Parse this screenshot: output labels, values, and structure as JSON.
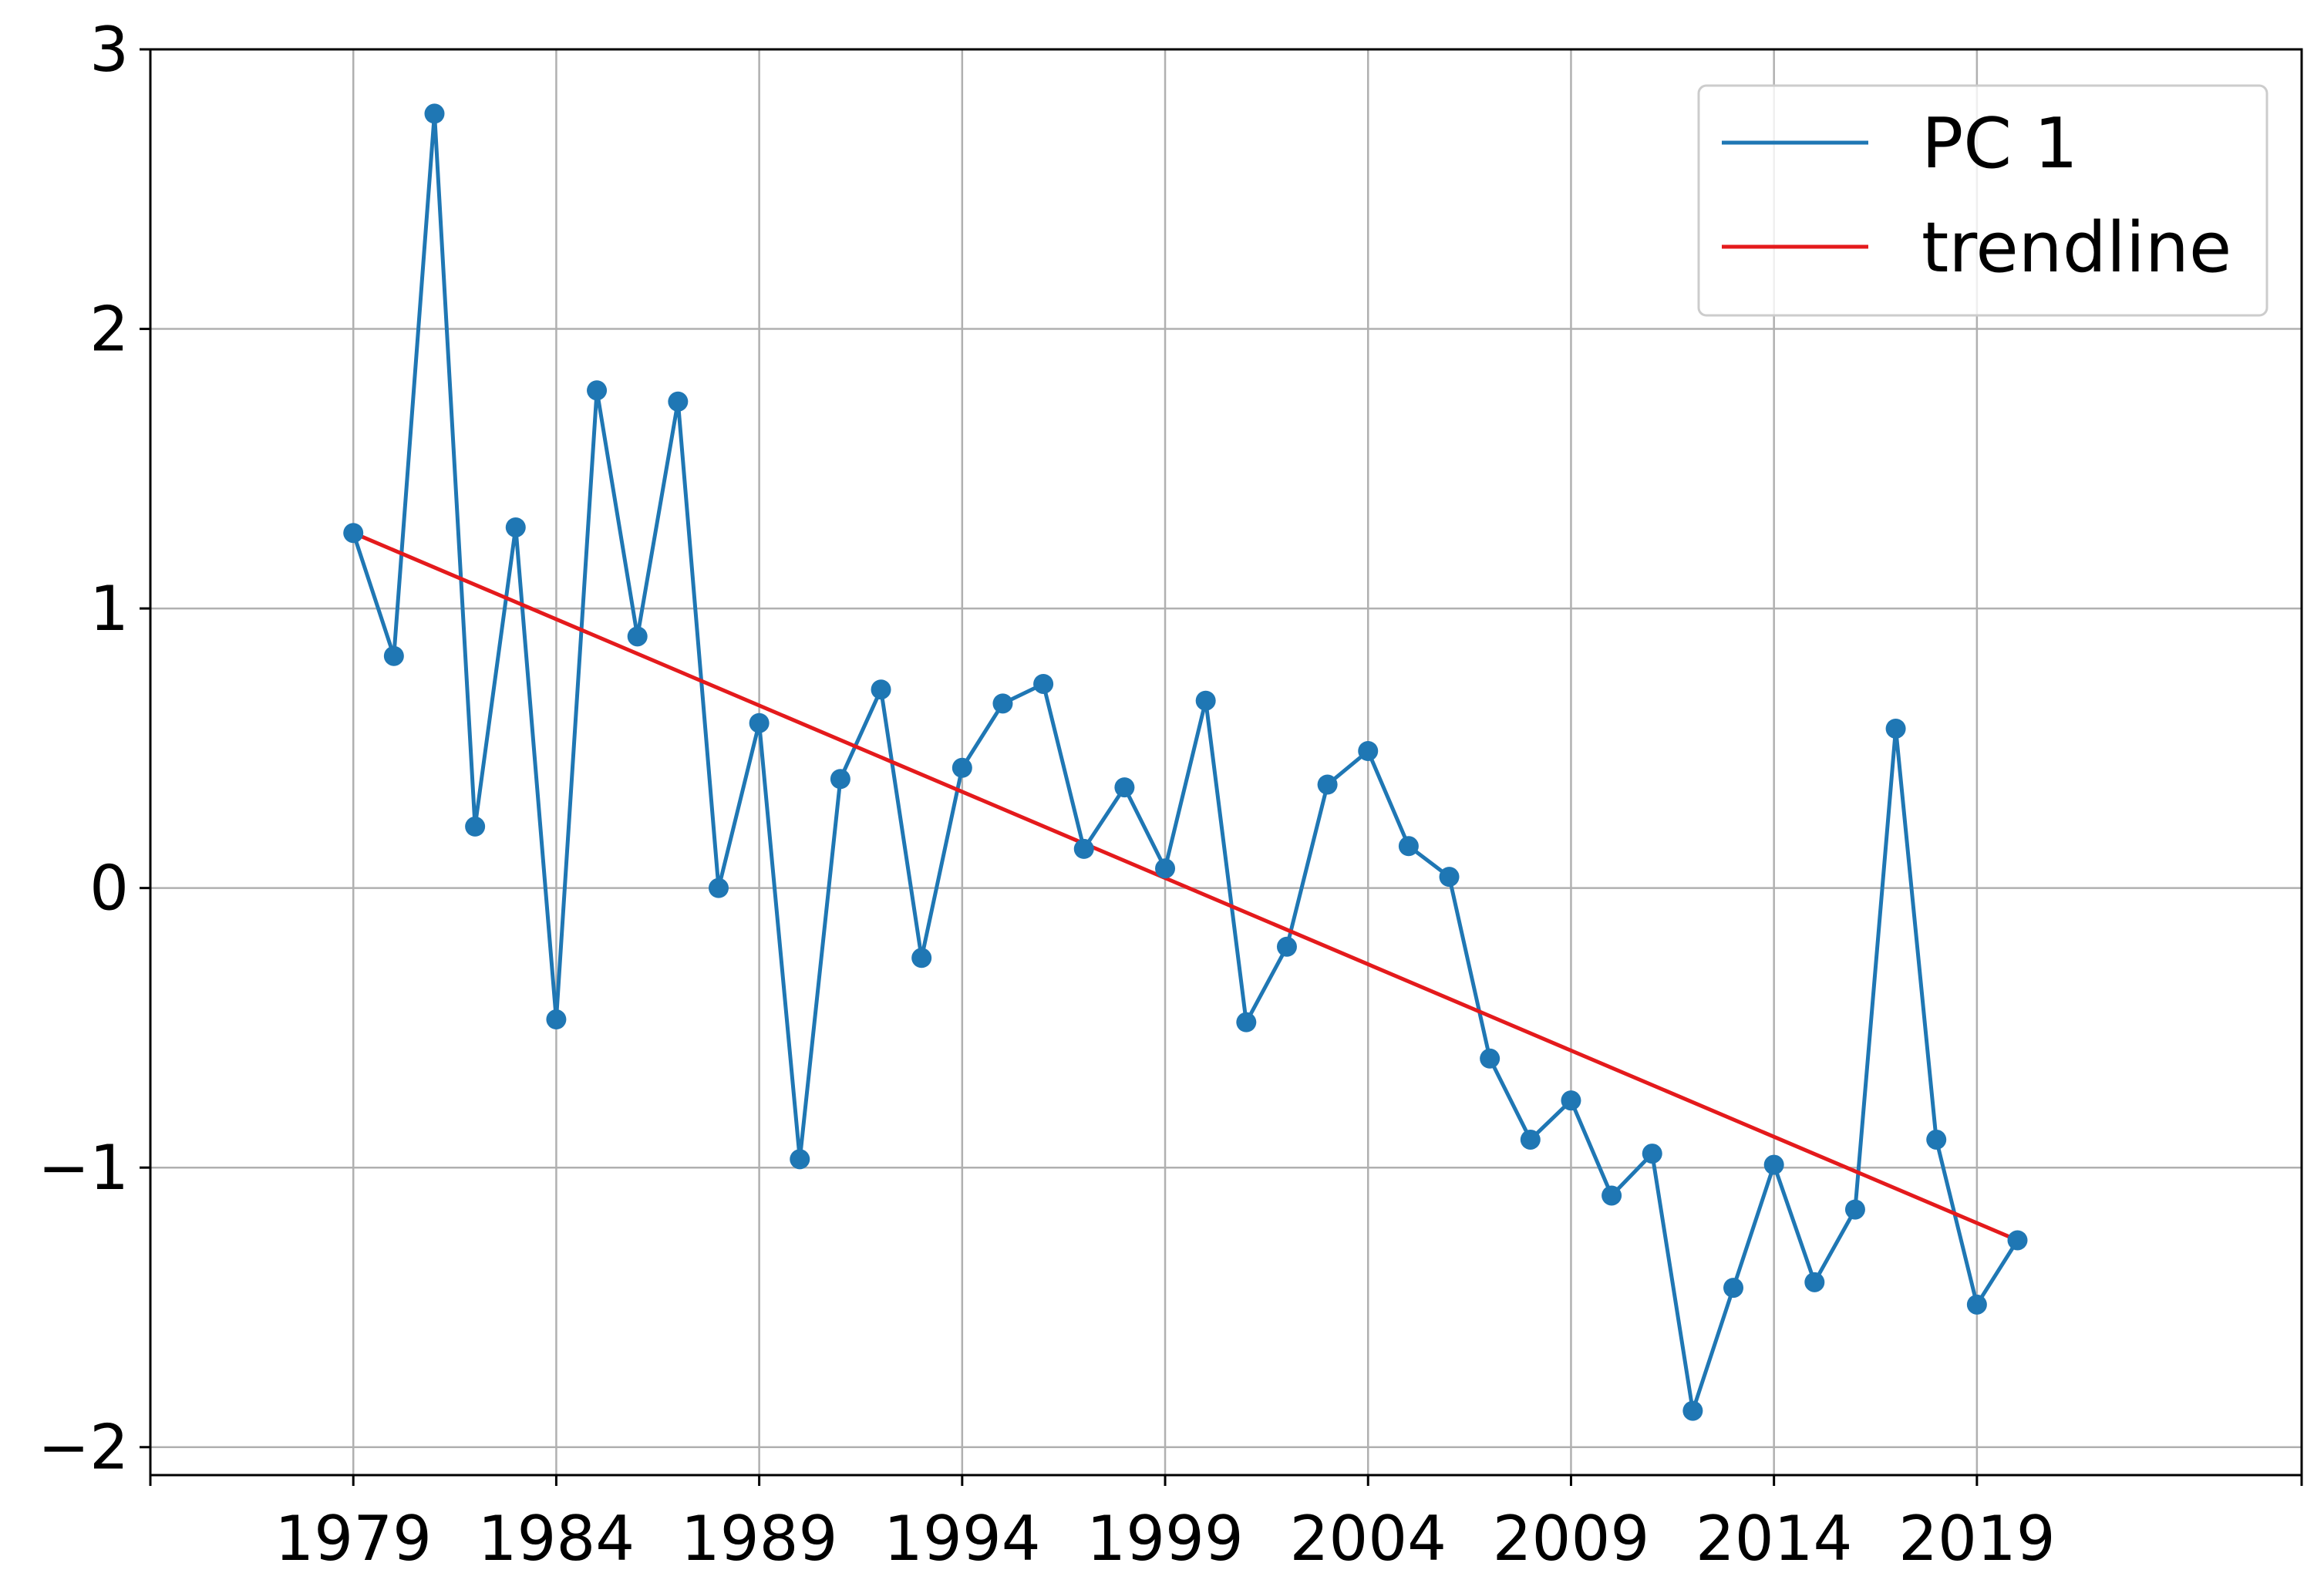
{
  "chart_data": {
    "type": "line",
    "title": "",
    "xlabel": "",
    "ylabel": "",
    "xlim": [
      1974,
      2027
    ],
    "ylim": [
      -2.1,
      3
    ],
    "grid": true,
    "legend_position": "top-right",
    "x_ticks": [
      1979,
      1984,
      1989,
      1994,
      1999,
      2004,
      2009,
      2014,
      2019
    ],
    "y_ticks": [
      -2,
      -1,
      0,
      1,
      2,
      3
    ],
    "y_tick_labels": [
      "−2",
      "−1",
      "0",
      "1",
      "2",
      "3"
    ],
    "series": [
      {
        "name": "PC 1",
        "color": "#1f77b4",
        "marker": "circle",
        "x": [
          1979,
          1980,
          1981,
          1982,
          1983,
          1984,
          1985,
          1986,
          1987,
          1988,
          1989,
          1990,
          1991,
          1992,
          1993,
          1994,
          1995,
          1996,
          1997,
          1998,
          1999,
          2000,
          2001,
          2002,
          2003,
          2004,
          2005,
          2006,
          2007,
          2008,
          2009,
          2010,
          2011,
          2012,
          2013,
          2014,
          2015,
          2016,
          2017,
          2018,
          2019,
          2020
        ],
        "y": [
          1.27,
          0.83,
          2.77,
          0.22,
          1.29,
          -0.47,
          1.78,
          0.9,
          1.74,
          0.0,
          0.59,
          -0.97,
          0.39,
          0.71,
          -0.25,
          0.43,
          0.66,
          0.73,
          0.14,
          0.36,
          0.07,
          0.67,
          -0.48,
          -0.21,
          0.37,
          0.49,
          0.15,
          0.04,
          -0.61,
          -0.9,
          -0.76,
          -1.1,
          -0.95,
          -1.87,
          -1.43,
          -0.99,
          -1.41,
          -1.15,
          0.57,
          -0.9,
          -1.49,
          -1.26
        ]
      },
      {
        "name": "trendline",
        "color": "#e41a1c",
        "x": [
          1979,
          2020
        ],
        "y": [
          1.27,
          -1.26
        ]
      }
    ]
  }
}
